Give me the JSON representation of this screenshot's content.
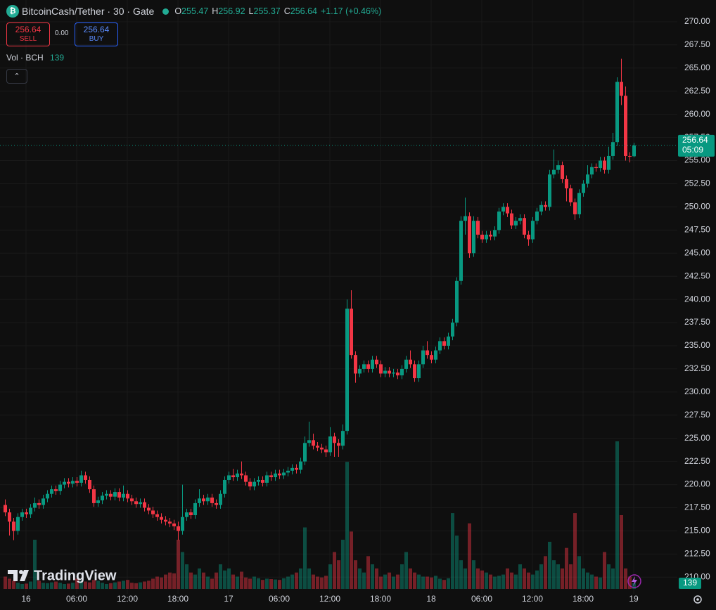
{
  "header": {
    "title": "BitcoinCash/Tether · 30 · Gate",
    "o": "O",
    "h": "H",
    "l": "L",
    "c": "C",
    "change": "+1.17 (+0.46%)"
  },
  "trade": {
    "sell": "SELL",
    "spread": "0.00",
    "buy": "BUY"
  },
  "volume_legend": "Vol · BCH",
  "branding": "TradingView",
  "chart_data": {
    "type": "candlestick",
    "up_color": "#089981",
    "down_color": "#f23645",
    "countdown": "05:09",
    "grid": true,
    "ylim": [
      208.2,
      272.35
    ],
    "yticks": [
      {
        "value": 210,
        "label": "210.00"
      },
      {
        "value": 212.5,
        "label": "212.50"
      },
      {
        "value": 215,
        "label": "215.00"
      },
      {
        "value": 217.5,
        "label": "217.50"
      },
      {
        "value": 220,
        "label": "220.00"
      },
      {
        "value": 222.5,
        "label": "222.50"
      },
      {
        "value": 225,
        "label": "225.00"
      },
      {
        "value": 227.5,
        "label": "227.50"
      },
      {
        "value": 230,
        "label": "230.00"
      },
      {
        "value": 232.5,
        "label": "232.50"
      },
      {
        "value": 235,
        "label": "235.00"
      },
      {
        "value": 237.5,
        "label": "237.50"
      },
      {
        "value": 240,
        "label": "240.00"
      },
      {
        "value": 242.5,
        "label": "242.50"
      },
      {
        "value": 245,
        "label": "245.00"
      },
      {
        "value": 247.5,
        "label": "247.50"
      },
      {
        "value": 250,
        "label": "250.00"
      },
      {
        "value": 252.5,
        "label": "252.50"
      },
      {
        "value": 255,
        "label": "255.00"
      },
      {
        "value": 257.5,
        "label": "257.50"
      },
      {
        "value": 260,
        "label": "260.00"
      },
      {
        "value": 262.5,
        "label": "262.50"
      },
      {
        "value": 265,
        "label": "265.00"
      },
      {
        "value": 267.5,
        "label": "267.50"
      },
      {
        "value": 270,
        "label": "270.00"
      }
    ],
    "xticks": [
      {
        "value": 5,
        "label": "16"
      },
      {
        "value": 17,
        "label": "06:00"
      },
      {
        "value": 29,
        "label": "12:00"
      },
      {
        "value": 41,
        "label": "18:00"
      },
      {
        "value": 53,
        "label": "17"
      },
      {
        "value": 65,
        "label": "06:00"
      },
      {
        "value": 77,
        "label": "12:00"
      },
      {
        "value": 89,
        "label": "18:00"
      },
      {
        "value": 101,
        "label": "18"
      },
      {
        "value": 113,
        "label": "06:00"
      },
      {
        "value": 125,
        "label": "12:00"
      },
      {
        "value": 137,
        "label": "18:00"
      },
      {
        "value": 149,
        "label": "19"
      }
    ],
    "candles": [
      [
        217.8,
        218.4,
        216.6,
        217.0
      ],
      [
        217.0,
        217.4,
        214.5,
        216.0
      ],
      [
        216.0,
        216.4,
        214.0,
        215.0
      ],
      [
        215.0,
        216.9,
        214.6,
        216.5
      ],
      [
        216.5,
        217.4,
        216.1,
        217.0
      ],
      [
        217.0,
        217.4,
        216.4,
        216.8
      ],
      [
        216.8,
        217.9,
        216.4,
        217.5
      ],
      [
        217.5,
        218.6,
        217.1,
        218.0
      ],
      [
        218.0,
        218.4,
        217.4,
        217.8
      ],
      [
        217.8,
        218.9,
        217.4,
        218.5
      ],
      [
        218.5,
        219.4,
        218.1,
        219.0
      ],
      [
        219.0,
        219.9,
        218.6,
        219.5
      ],
      [
        219.5,
        219.9,
        218.9,
        219.3
      ],
      [
        219.3,
        220.4,
        218.9,
        220.0
      ],
      [
        220.0,
        220.7,
        219.6,
        220.3
      ],
      [
        220.3,
        220.7,
        219.7,
        220.1
      ],
      [
        220.1,
        220.8,
        219.7,
        220.4
      ],
      [
        220.4,
        220.8,
        219.8,
        220.2
      ],
      [
        220.2,
        221.5,
        219.8,
        221.0
      ],
      [
        221.0,
        221.4,
        220.1,
        220.5
      ],
      [
        220.5,
        220.9,
        219.1,
        219.5
      ],
      [
        219.5,
        219.9,
        217.6,
        218.0
      ],
      [
        218.0,
        218.7,
        217.6,
        218.3
      ],
      [
        218.3,
        219.2,
        217.9,
        218.8
      ],
      [
        218.8,
        219.4,
        218.4,
        219.0
      ],
      [
        219.0,
        219.4,
        218.3,
        218.7
      ],
      [
        218.7,
        219.6,
        218.3,
        219.2
      ],
      [
        219.2,
        219.6,
        218.2,
        218.6
      ],
      [
        218.6,
        219.9,
        218.2,
        219.0
      ],
      [
        219.0,
        219.4,
        218.1,
        218.5
      ],
      [
        218.5,
        218.9,
        217.8,
        218.2
      ],
      [
        218.2,
        218.6,
        217.5,
        217.9
      ],
      [
        217.9,
        218.5,
        217.5,
        218.1
      ],
      [
        218.1,
        218.5,
        217.1,
        217.5
      ],
      [
        217.5,
        217.9,
        216.8,
        217.2
      ],
      [
        217.2,
        217.6,
        216.4,
        216.8
      ],
      [
        216.8,
        217.2,
        216.1,
        216.5
      ],
      [
        216.5,
        216.9,
        215.8,
        216.2
      ],
      [
        216.2,
        216.6,
        215.6,
        216.0
      ],
      [
        216.0,
        216.4,
        215.4,
        215.8
      ],
      [
        215.8,
        216.2,
        215.1,
        215.5
      ],
      [
        215.5,
        216.0,
        214.0,
        215.0
      ],
      [
        215.0,
        220.0,
        214.6,
        216.5
      ],
      [
        216.5,
        217.4,
        216.1,
        217.0
      ],
      [
        217.0,
        217.4,
        216.3,
        216.7
      ],
      [
        216.7,
        218.4,
        216.3,
        218.0
      ],
      [
        218.0,
        219.5,
        217.6,
        218.5
      ],
      [
        218.5,
        218.9,
        217.8,
        218.2
      ],
      [
        218.2,
        219.0,
        217.8,
        218.6
      ],
      [
        218.6,
        219.0,
        217.6,
        218.0
      ],
      [
        218.0,
        218.4,
        217.4,
        217.8
      ],
      [
        217.8,
        219.4,
        217.4,
        219.0
      ],
      [
        219.0,
        220.9,
        218.6,
        220.5
      ],
      [
        220.5,
        221.4,
        220.1,
        221.0
      ],
      [
        221.0,
        221.7,
        220.4,
        220.8
      ],
      [
        220.8,
        221.6,
        220.4,
        221.2
      ],
      [
        221.2,
        222.5,
        220.6,
        221.0
      ],
      [
        221.0,
        221.4,
        219.9,
        220.3
      ],
      [
        220.3,
        220.7,
        219.4,
        219.8
      ],
      [
        219.8,
        220.7,
        219.4,
        220.3
      ],
      [
        220.3,
        220.9,
        219.9,
        220.5
      ],
      [
        220.5,
        220.9,
        219.8,
        220.2
      ],
      [
        220.2,
        221.4,
        219.8,
        221.0
      ],
      [
        221.0,
        221.4,
        220.4,
        220.8
      ],
      [
        220.8,
        221.6,
        220.4,
        221.2
      ],
      [
        221.2,
        221.6,
        220.6,
        221.0
      ],
      [
        221.0,
        221.7,
        220.6,
        221.3
      ],
      [
        221.3,
        221.9,
        220.9,
        221.5
      ],
      [
        221.5,
        222.2,
        221.1,
        221.8
      ],
      [
        221.8,
        222.2,
        221.2,
        221.6
      ],
      [
        221.6,
        222.9,
        221.2,
        222.5
      ],
      [
        222.5,
        225.2,
        222.1,
        224.5
      ],
      [
        224.5,
        226.8,
        224.1,
        224.8
      ],
      [
        224.8,
        225.5,
        223.8,
        224.2
      ],
      [
        224.2,
        224.6,
        223.6,
        224.0
      ],
      [
        224.0,
        224.4,
        223.4,
        223.8
      ],
      [
        223.8,
        224.2,
        223.0,
        223.5
      ],
      [
        223.5,
        226.2,
        223.1,
        225.2
      ],
      [
        225.2,
        225.6,
        223.0,
        224.5
      ],
      [
        224.5,
        224.9,
        223.0,
        224.2
      ],
      [
        224.2,
        226.5,
        223.8,
        225.8
      ],
      [
        225.8,
        240.0,
        225.4,
        239.0
      ],
      [
        239.0,
        241.0,
        233.6,
        234.0
      ],
      [
        234.0,
        234.4,
        231.0,
        232.0
      ],
      [
        232.0,
        232.9,
        231.6,
        232.5
      ],
      [
        232.5,
        233.4,
        232.1,
        233.0
      ],
      [
        233.0,
        233.4,
        232.1,
        232.5
      ],
      [
        232.5,
        233.9,
        232.1,
        233.5
      ],
      [
        233.5,
        233.9,
        232.6,
        233.0
      ],
      [
        233.0,
        233.4,
        231.6,
        232.0
      ],
      [
        232.0,
        232.7,
        231.6,
        232.3
      ],
      [
        232.3,
        232.7,
        231.6,
        232.0
      ],
      [
        232.0,
        232.5,
        231.6,
        232.1
      ],
      [
        232.1,
        232.5,
        231.4,
        231.8
      ],
      [
        231.8,
        232.9,
        231.4,
        232.5
      ],
      [
        232.5,
        233.9,
        232.1,
        233.5
      ],
      [
        233.5,
        234.5,
        232.6,
        233.0
      ],
      [
        233.0,
        233.4,
        231.1,
        231.5
      ],
      [
        231.5,
        233.4,
        231.1,
        233.0
      ],
      [
        233.0,
        235.0,
        232.6,
        234.5
      ],
      [
        234.5,
        235.5,
        233.6,
        234.0
      ],
      [
        234.0,
        234.4,
        233.1,
        233.5
      ],
      [
        233.5,
        234.9,
        233.1,
        234.5
      ],
      [
        234.5,
        235.9,
        234.1,
        235.5
      ],
      [
        235.5,
        235.9,
        234.6,
        235.0
      ],
      [
        235.0,
        236.4,
        234.6,
        236.0
      ],
      [
        236.0,
        237.9,
        235.6,
        237.5
      ],
      [
        237.5,
        242.4,
        237.1,
        242.0
      ],
      [
        242.0,
        249.0,
        241.6,
        248.5
      ],
      [
        248.5,
        251.0,
        247.0,
        249.0
      ],
      [
        249.0,
        249.4,
        244.5,
        245.0
      ],
      [
        245.0,
        249.0,
        244.6,
        248.5
      ],
      [
        248.5,
        248.9,
        246.6,
        247.0
      ],
      [
        247.0,
        247.4,
        246.1,
        246.5
      ],
      [
        246.5,
        247.4,
        246.1,
        247.0
      ],
      [
        247.0,
        247.4,
        246.4,
        246.8
      ],
      [
        246.8,
        247.9,
        246.4,
        247.5
      ],
      [
        247.5,
        249.9,
        247.1,
        249.5
      ],
      [
        249.5,
        250.4,
        249.1,
        250.0
      ],
      [
        250.0,
        250.4,
        248.9,
        249.3
      ],
      [
        249.3,
        249.7,
        247.6,
        248.0
      ],
      [
        248.0,
        248.9,
        247.6,
        248.5
      ],
      [
        248.5,
        249.2,
        248.1,
        248.8
      ],
      [
        248.8,
        249.2,
        246.6,
        247.0
      ],
      [
        247.0,
        247.4,
        245.8,
        246.5
      ],
      [
        246.5,
        248.9,
        246.1,
        248.5
      ],
      [
        248.5,
        249.9,
        248.1,
        249.5
      ],
      [
        249.5,
        250.6,
        249.1,
        250.2
      ],
      [
        250.2,
        250.6,
        249.6,
        250.0
      ],
      [
        250.0,
        254.0,
        249.6,
        253.5
      ],
      [
        253.5,
        256.2,
        253.1,
        254.0
      ],
      [
        254.0,
        255.0,
        253.6,
        254.5
      ],
      [
        254.5,
        254.9,
        252.6,
        253.0
      ],
      [
        253.0,
        253.4,
        250.6,
        252.0
      ],
      [
        252.0,
        252.4,
        250.1,
        250.5
      ],
      [
        250.5,
        250.9,
        248.6,
        249.2
      ],
      [
        249.2,
        251.9,
        248.8,
        251.5
      ],
      [
        251.5,
        252.9,
        251.1,
        252.5
      ],
      [
        252.5,
        254.5,
        252.1,
        253.5
      ],
      [
        253.5,
        254.7,
        253.1,
        254.3
      ],
      [
        254.3,
        254.7,
        253.8,
        254.2
      ],
      [
        254.2,
        255.4,
        253.8,
        255.0
      ],
      [
        255.0,
        255.4,
        253.6,
        254.0
      ],
      [
        254.0,
        256.5,
        253.6,
        255.5
      ],
      [
        255.5,
        258.0,
        255.1,
        257.0
      ],
      [
        257.0,
        264.0,
        256.6,
        263.5
      ],
      [
        263.5,
        266.0,
        261.0,
        262.0
      ],
      [
        262.0,
        263.0,
        255.0,
        255.5
      ],
      [
        255.5,
        255.9,
        254.8,
        255.47
      ],
      [
        255.47,
        256.92,
        255.37,
        256.64
      ]
    ],
    "volumes": [
      300,
      250,
      200,
      150,
      120,
      130,
      180,
      1200,
      200,
      150,
      140,
      160,
      180,
      150,
      120,
      130,
      150,
      250,
      200,
      180,
      160,
      220,
      200,
      150,
      120,
      140,
      160,
      180,
      200,
      220,
      150,
      140,
      160,
      180,
      200,
      250,
      300,
      280,
      350,
      400,
      380,
      1200,
      900,
      600,
      400,
      350,
      500,
      400,
      300,
      250,
      400,
      600,
      450,
      500,
      350,
      300,
      420,
      280,
      250,
      300,
      260,
      220,
      250,
      240,
      230,
      220,
      260,
      300,
      350,
      400,
      500,
      1500,
      500,
      350,
      300,
      280,
      320,
      600,
      900,
      700,
      1200,
      3100,
      1400,
      700,
      500,
      400,
      800,
      600,
      500,
      300,
      350,
      400,
      300,
      350,
      600,
      900,
      500,
      400,
      350,
      300,
      300,
      280,
      320,
      250,
      220,
      260,
      1850,
      1300,
      700,
      500,
      1600,
      700,
      500,
      450,
      400,
      350,
      300,
      320,
      350,
      500,
      400,
      350,
      600,
      500,
      400,
      350,
      450,
      600,
      800,
      1150,
      700,
      600,
      500,
      1000,
      600,
      1850,
      800,
      500,
      400,
      350,
      300,
      280,
      900,
      600,
      500,
      3600,
      1800,
      500,
      300,
      139
    ]
  }
}
